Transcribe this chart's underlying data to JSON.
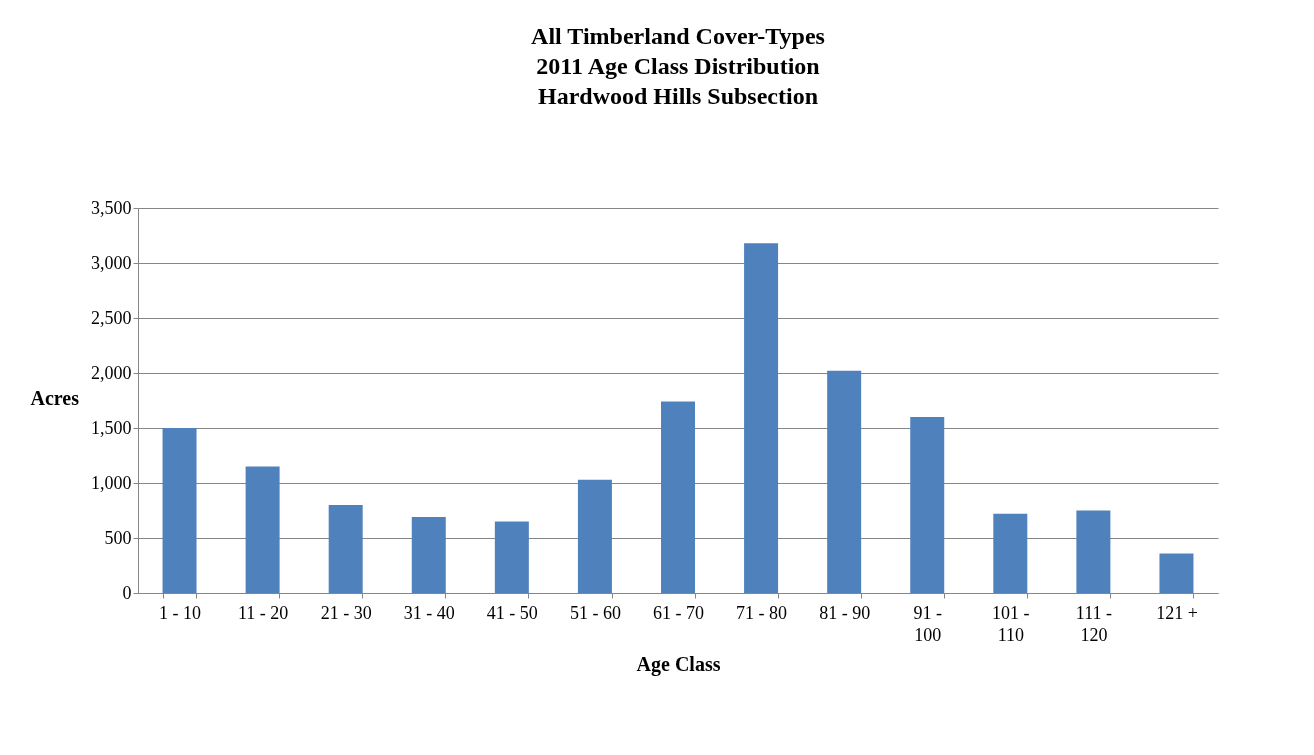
{
  "chart_data": {
    "type": "bar",
    "title": [
      "All Timberland Cover-Types",
      "2011 Age Class Distribution",
      "Hardwood Hills Subsection"
    ],
    "xlabel": "Age Class",
    "ylabel": "Acres",
    "categories": [
      "1 - 10",
      "11 - 20",
      "21 - 30",
      "31 - 40",
      "41 - 50",
      "51 - 60",
      "61 - 70",
      "71 - 80",
      "81 - 90",
      "91 - 100",
      "101 - 110",
      "111 - 120",
      "121 +"
    ],
    "values": [
      1500,
      1150,
      800,
      690,
      650,
      1030,
      1740,
      3180,
      2020,
      1600,
      720,
      750,
      360
    ],
    "color": "#4f81bd",
    "ylim": [
      0,
      3500
    ],
    "yticks": [
      0,
      500,
      {
        "value": 1000,
        "label": "1,000"
      },
      {
        "value": 1500,
        "label": "1,500"
      },
      {
        "value": 2000,
        "label": "2,000"
      },
      {
        "value": 2500,
        "label": "2,500"
      },
      {
        "value": 3000,
        "label": "3,000"
      },
      {
        "value": 3500,
        "label": "3,500"
      }
    ],
    "grid": "y"
  }
}
